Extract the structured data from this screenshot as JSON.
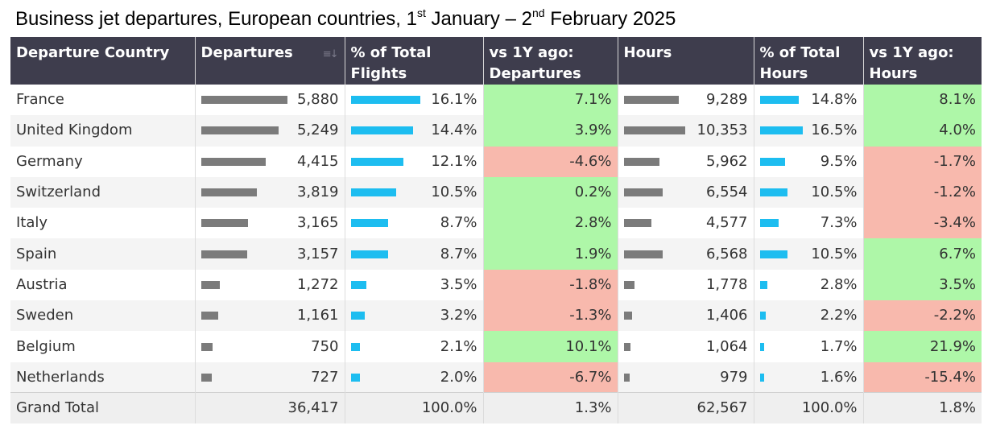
{
  "title": {
    "part1": "Business jet departures, European countries, 1",
    "sup1": "st",
    "part2": " January – 2",
    "sup2": "nd",
    "part3": " February 2025"
  },
  "columns": [
    "Departure Country",
    "Departures",
    "% of Total Flights",
    "vs 1Y ago: Departures",
    "Hours",
    "% of Total Hours",
    "vs 1Y ago: Hours"
  ],
  "column_lines": {
    "c0": [
      "Departure Country"
    ],
    "c1": [
      "Departures"
    ],
    "c2": [
      "% of Total",
      "Flights"
    ],
    "c3": [
      "vs 1Y ago:",
      "Departures"
    ],
    "c4": [
      "Hours"
    ],
    "c5": [
      "% of Total",
      "Hours"
    ],
    "c6": [
      "vs 1Y ago:",
      "Hours"
    ]
  },
  "sort_icon": "sort-descending-icon",
  "colors": {
    "header_bg": "#3e3d4d",
    "grey_bar": "#7b7b7b",
    "blue_bar": "#1dbdf0",
    "positive_bg": "#aef7a8",
    "negative_bg": "#f8b9ad"
  },
  "chart_data": {
    "type": "table",
    "title": "Business jet departures, European countries, 1st January – 2nd February 2025",
    "rows": [
      {
        "country": "France",
        "departures": 5880,
        "departures_label": "5,880",
        "pct_flights": 16.1,
        "pct_flights_label": "16.1%",
        "yoy_departures": 7.1,
        "yoy_departures_label": "7.1%",
        "hours": 9289,
        "hours_label": "9,289",
        "pct_hours": 14.8,
        "pct_hours_label": "14.8%",
        "yoy_hours": 8.1,
        "yoy_hours_label": "8.1%"
      },
      {
        "country": "United Kingdom",
        "departures": 5249,
        "departures_label": "5,249",
        "pct_flights": 14.4,
        "pct_flights_label": "14.4%",
        "yoy_departures": 3.9,
        "yoy_departures_label": "3.9%",
        "hours": 10353,
        "hours_label": "10,353",
        "pct_hours": 16.5,
        "pct_hours_label": "16.5%",
        "yoy_hours": 4.0,
        "yoy_hours_label": "4.0%"
      },
      {
        "country": "Germany",
        "departures": 4415,
        "departures_label": "4,415",
        "pct_flights": 12.1,
        "pct_flights_label": "12.1%",
        "yoy_departures": -4.6,
        "yoy_departures_label": "-4.6%",
        "hours": 5962,
        "hours_label": "5,962",
        "pct_hours": 9.5,
        "pct_hours_label": "9.5%",
        "yoy_hours": -1.7,
        "yoy_hours_label": "-1.7%"
      },
      {
        "country": "Switzerland",
        "departures": 3819,
        "departures_label": "3,819",
        "pct_flights": 10.5,
        "pct_flights_label": "10.5%",
        "yoy_departures": 0.2,
        "yoy_departures_label": "0.2%",
        "hours": 6554,
        "hours_label": "6,554",
        "pct_hours": 10.5,
        "pct_hours_label": "10.5%",
        "yoy_hours": -1.2,
        "yoy_hours_label": "-1.2%"
      },
      {
        "country": "Italy",
        "departures": 3165,
        "departures_label": "3,165",
        "pct_flights": 8.7,
        "pct_flights_label": "8.7%",
        "yoy_departures": 2.8,
        "yoy_departures_label": "2.8%",
        "hours": 4577,
        "hours_label": "4,577",
        "pct_hours": 7.3,
        "pct_hours_label": "7.3%",
        "yoy_hours": -3.4,
        "yoy_hours_label": "-3.4%"
      },
      {
        "country": "Spain",
        "departures": 3157,
        "departures_label": "3,157",
        "pct_flights": 8.7,
        "pct_flights_label": "8.7%",
        "yoy_departures": 1.9,
        "yoy_departures_label": "1.9%",
        "hours": 6568,
        "hours_label": "6,568",
        "pct_hours": 10.5,
        "pct_hours_label": "10.5%",
        "yoy_hours": 6.7,
        "yoy_hours_label": "6.7%"
      },
      {
        "country": "Austria",
        "departures": 1272,
        "departures_label": "1,272",
        "pct_flights": 3.5,
        "pct_flights_label": "3.5%",
        "yoy_departures": -1.8,
        "yoy_departures_label": "-1.8%",
        "hours": 1778,
        "hours_label": "1,778",
        "pct_hours": 2.8,
        "pct_hours_label": "2.8%",
        "yoy_hours": 3.5,
        "yoy_hours_label": "3.5%"
      },
      {
        "country": "Sweden",
        "departures": 1161,
        "departures_label": "1,161",
        "pct_flights": 3.2,
        "pct_flights_label": "3.2%",
        "yoy_departures": -1.3,
        "yoy_departures_label": "-1.3%",
        "hours": 1406,
        "hours_label": "1,406",
        "pct_hours": 2.2,
        "pct_hours_label": "2.2%",
        "yoy_hours": -2.2,
        "yoy_hours_label": "-2.2%"
      },
      {
        "country": "Belgium",
        "departures": 750,
        "departures_label": "750",
        "pct_flights": 2.1,
        "pct_flights_label": "2.1%",
        "yoy_departures": 10.1,
        "yoy_departures_label": "10.1%",
        "hours": 1064,
        "hours_label": "1,064",
        "pct_hours": 1.7,
        "pct_hours_label": "1.7%",
        "yoy_hours": 21.9,
        "yoy_hours_label": "21.9%"
      },
      {
        "country": "Netherlands",
        "departures": 727,
        "departures_label": "727",
        "pct_flights": 2.0,
        "pct_flights_label": "2.0%",
        "yoy_departures": -6.7,
        "yoy_departures_label": "-6.7%",
        "hours": 979,
        "hours_label": "979",
        "pct_hours": 1.6,
        "pct_hours_label": "1.6%",
        "yoy_hours": -15.4,
        "yoy_hours_label": "-15.4%"
      }
    ],
    "total": {
      "label": "Grand Total",
      "departures": 36417,
      "departures_label": "36,417",
      "pct_flights": 100.0,
      "pct_flights_label": "100.0%",
      "yoy_departures": 1.3,
      "yoy_departures_label": "1.3%",
      "hours": 62567,
      "hours_label": "62,567",
      "pct_hours": 100.0,
      "pct_hours_label": "100.0%",
      "yoy_hours": 1.8,
      "yoy_hours_label": "1.8%"
    }
  }
}
